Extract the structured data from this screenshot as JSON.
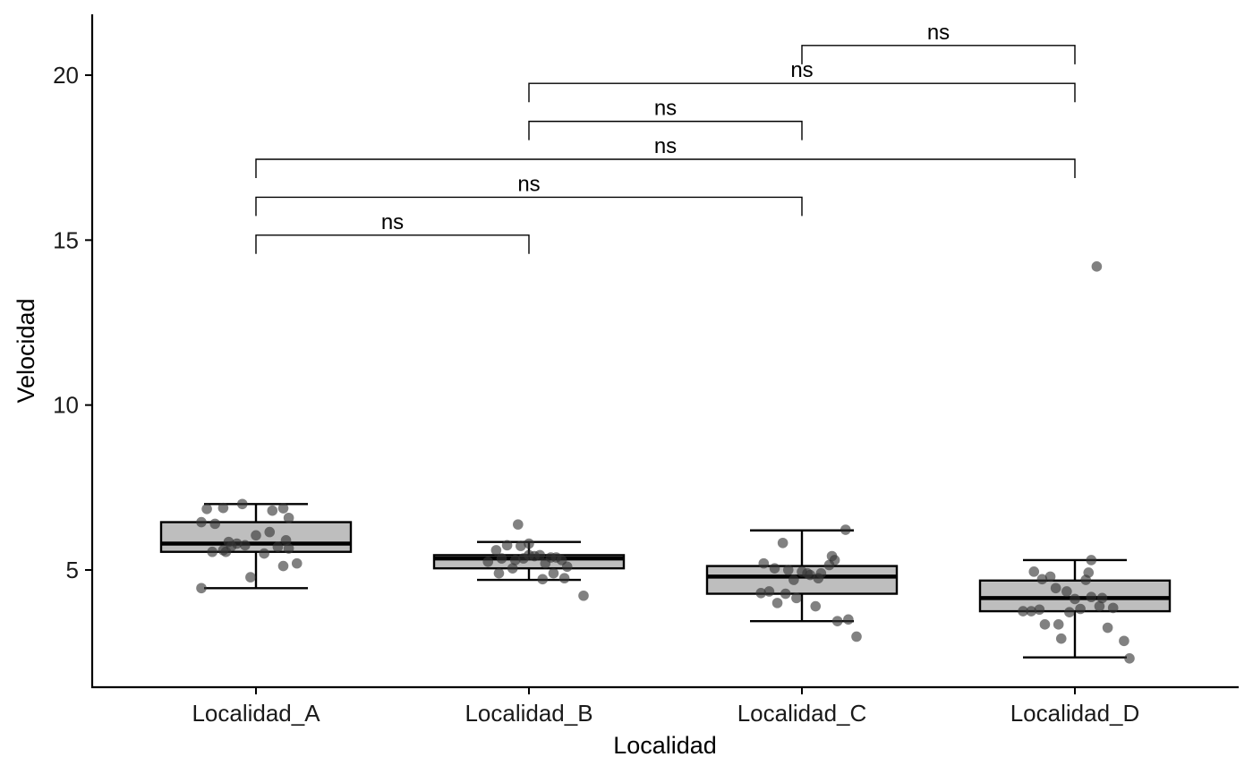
{
  "chart_data": {
    "type": "box",
    "title": "",
    "xlabel": "Localidad",
    "ylabel": "Velocidad",
    "ylim": [
      1.5,
      21.8
    ],
    "yticks": [
      5,
      10,
      15,
      20
    ],
    "grid": false,
    "legend": "none",
    "categories": [
      "Localidad_A",
      "Localidad_B",
      "Localidad_C",
      "Localidad_D"
    ],
    "box_fill": "#bebebe",
    "point_color": "#333333",
    "boxes": [
      {
        "category": "Localidad_A",
        "whisker_low": 4.45,
        "q1": 5.55,
        "median": 5.8,
        "q3": 6.45,
        "whisker_high": 7.0
      },
      {
        "category": "Localidad_B",
        "whisker_low": 4.7,
        "q1": 5.05,
        "median": 5.35,
        "q3": 5.45,
        "whisker_high": 5.85
      },
      {
        "category": "Localidad_C",
        "whisker_low": 3.45,
        "q1": 4.28,
        "median": 4.8,
        "q3": 5.12,
        "whisker_high": 6.2
      },
      {
        "category": "Localidad_D",
        "whisker_low": 2.35,
        "q1": 3.75,
        "median": 4.15,
        "q3": 4.68,
        "whisker_high": 5.3
      }
    ],
    "points": [
      {
        "category": "Localidad_A",
        "x_jitter": [
          -0.18,
          -0.12,
          -0.05,
          0.06,
          0.1,
          0.12,
          -0.2,
          -0.15,
          0.0,
          0.05,
          0.11,
          -0.1,
          -0.07,
          -0.04,
          0.08,
          0.12,
          -0.16,
          -0.11,
          0.03,
          0.15,
          -0.2,
          -0.02,
          0.1,
          -0.12,
          -0.09
        ],
        "y": [
          6.85,
          6.88,
          7.0,
          6.8,
          6.87,
          6.58,
          6.45,
          6.4,
          6.05,
          6.15,
          5.9,
          5.85,
          5.8,
          5.75,
          5.7,
          5.65,
          5.55,
          5.55,
          5.5,
          5.2,
          4.45,
          4.78,
          5.12,
          5.6,
          5.72
        ]
      },
      {
        "category": "Localidad_B",
        "x_jitter": [
          -0.12,
          -0.08,
          -0.03,
          0.0,
          0.04,
          0.08,
          0.12,
          -0.15,
          -0.1,
          -0.05,
          0.02,
          0.06,
          0.1,
          0.14,
          -0.11,
          -0.06,
          0.05,
          0.09,
          0.13,
          -0.04,
          0.2,
          0.0,
          -0.02
        ],
        "y": [
          5.6,
          5.75,
          5.73,
          5.45,
          5.45,
          5.38,
          5.3,
          5.25,
          5.35,
          5.3,
          5.42,
          5.2,
          5.38,
          5.1,
          4.9,
          5.05,
          4.72,
          4.9,
          4.75,
          6.38,
          4.22,
          5.8,
          5.35
        ]
      },
      {
        "category": "Localidad_C",
        "x_jitter": [
          -0.14,
          -0.1,
          -0.05,
          0.0,
          0.03,
          0.07,
          0.1,
          0.12,
          -0.15,
          -0.12,
          -0.06,
          -0.02,
          0.02,
          0.06,
          0.11,
          -0.09,
          -0.03,
          0.05,
          0.13,
          0.17,
          0.16,
          -0.07,
          0.2
        ],
        "y": [
          5.2,
          5.05,
          5.0,
          4.95,
          4.85,
          4.9,
          5.15,
          5.3,
          4.3,
          4.35,
          4.28,
          4.15,
          4.9,
          4.75,
          5.42,
          4.0,
          4.7,
          3.9,
          3.45,
          3.5,
          6.22,
          5.82,
          2.98
        ]
      },
      {
        "category": "Localidad_D",
        "x_jitter": [
          -0.15,
          -0.12,
          -0.09,
          -0.07,
          -0.03,
          0.0,
          0.04,
          0.06,
          0.1,
          0.14,
          -0.16,
          -0.13,
          -0.06,
          -0.02,
          0.02,
          0.05,
          0.09,
          0.12,
          -0.11,
          0.18,
          -0.19,
          -0.05,
          0.06,
          0.2,
          0.08
        ],
        "y": [
          4.95,
          4.72,
          4.8,
          4.45,
          4.35,
          4.12,
          4.7,
          4.18,
          4.15,
          3.85,
          3.75,
          3.8,
          3.35,
          3.72,
          3.82,
          4.92,
          3.9,
          3.25,
          3.35,
          2.85,
          3.75,
          2.92,
          5.3,
          2.32,
          14.2
        ]
      }
    ],
    "comparisons": [
      {
        "group1": "Localidad_A",
        "group2": "Localidad_B",
        "label": "ns",
        "y": 15.15
      },
      {
        "group1": "Localidad_A",
        "group2": "Localidad_C",
        "label": "ns",
        "y": 16.3
      },
      {
        "group1": "Localidad_A",
        "group2": "Localidad_D",
        "label": "ns",
        "y": 17.45
      },
      {
        "group1": "Localidad_B",
        "group2": "Localidad_C",
        "label": "ns",
        "y": 18.6
      },
      {
        "group1": "Localidad_B",
        "group2": "Localidad_D",
        "label": "ns",
        "y": 19.75
      },
      {
        "group1": "Localidad_C",
        "group2": "Localidad_D",
        "label": "ns",
        "y": 20.9
      }
    ]
  }
}
